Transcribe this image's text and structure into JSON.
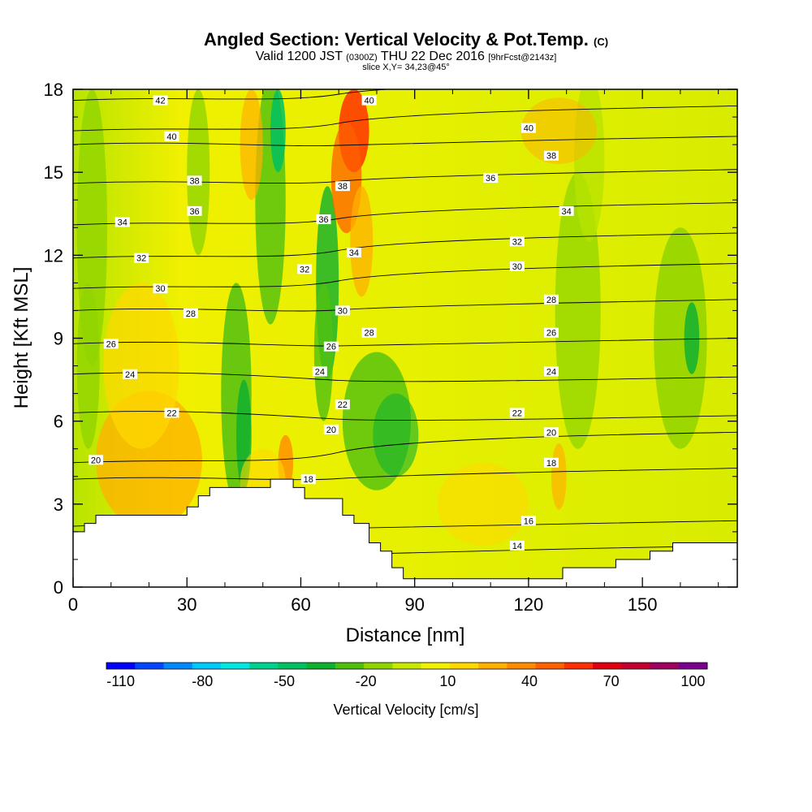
{
  "header": {
    "title": "Angled Section: Vertical Velocity & Pot.Temp.",
    "title_tag": "(C)",
    "subtitle_a": "Valid 1200 JST",
    "subtitle_b": "(0300Z)",
    "subtitle_c": "THU 22 Dec 2016",
    "subtitle_d": "[9hrFcst@2143z]",
    "slice": "slice X,Y= 34,23@45°"
  },
  "chart_data": {
    "type": "heatmap",
    "xlabel": "Distance [nm]",
    "ylabel": "Height [Kft MSL]",
    "xlim": [
      0,
      175
    ],
    "ylim": [
      0,
      18
    ],
    "x_ticks": [
      "0",
      "30",
      "60",
      "90",
      "120",
      "150"
    ],
    "y_ticks": [
      "0",
      "3",
      "6",
      "9",
      "12",
      "15",
      "18"
    ],
    "terrain_profile": [
      [
        0,
        2.0
      ],
      [
        3,
        2.0
      ],
      [
        3,
        2.3
      ],
      [
        6,
        2.3
      ],
      [
        6,
        2.6
      ],
      [
        30,
        2.6
      ],
      [
        30,
        2.9
      ],
      [
        33,
        2.9
      ],
      [
        33,
        3.3
      ],
      [
        36,
        3.3
      ],
      [
        36,
        3.6
      ],
      [
        52,
        3.6
      ],
      [
        52,
        3.9
      ],
      [
        58,
        3.9
      ],
      [
        58,
        3.6
      ],
      [
        61,
        3.6
      ],
      [
        61,
        3.2
      ],
      [
        71,
        3.2
      ],
      [
        71,
        2.6
      ],
      [
        74,
        2.6
      ],
      [
        74,
        2.3
      ],
      [
        78,
        2.3
      ],
      [
        78,
        1.6
      ],
      [
        81,
        1.6
      ],
      [
        81,
        1.3
      ],
      [
        84,
        1.3
      ],
      [
        84,
        0.7
      ],
      [
        87,
        0.7
      ],
      [
        87,
        0.3
      ],
      [
        90,
        0.3
      ],
      [
        90,
        0.3
      ],
      [
        129,
        0.3
      ],
      [
        129,
        0.7
      ],
      [
        143,
        0.7
      ],
      [
        143,
        1.0
      ],
      [
        152,
        1.0
      ],
      [
        152,
        1.3
      ],
      [
        158,
        1.3
      ],
      [
        158,
        1.6
      ],
      [
        175,
        1.6
      ]
    ],
    "theta_contours": [
      {
        "label": "14",
        "y0": 1.2,
        "y1": 1.5
      },
      {
        "label": "16",
        "y0": 2.2,
        "y1": 2.4
      },
      {
        "label": "18",
        "y0": 3.9,
        "y1": 4.3
      },
      {
        "label": "20",
        "y0": 4.5,
        "y1": 5.6
      },
      {
        "label": "22",
        "y0": 6.3,
        "y1": 6.2
      },
      {
        "label": "24",
        "y0": 7.7,
        "y1": 7.6
      },
      {
        "label": "26",
        "y0": 8.8,
        "y1": 9.0
      },
      {
        "label": "28",
        "y0": 10.0,
        "y1": 10.4
      },
      {
        "label": "30",
        "y0": 10.8,
        "y1": 11.7
      },
      {
        "label": "32",
        "y0": 11.9,
        "y1": 12.8
      },
      {
        "label": "34",
        "y0": 13.1,
        "y1": 13.9
      },
      {
        "label": "36",
        "y0": 14.6,
        "y1": 15.1
      },
      {
        "label": "38",
        "y0": 16.0,
        "y1": 16.3
      },
      {
        "label": "40",
        "y0": 16.5,
        "y1": 17.4
      },
      {
        "label": "42",
        "y0": 17.6,
        "y1": 18.4
      }
    ],
    "contour_labels": [
      {
        "text": "42",
        "x": 23,
        "y": 17.6
      },
      {
        "text": "40",
        "x": 26,
        "y": 16.3
      },
      {
        "text": "38",
        "x": 32,
        "y": 14.7
      },
      {
        "text": "36",
        "x": 32,
        "y": 13.6
      },
      {
        "text": "34",
        "x": 13,
        "y": 13.2
      },
      {
        "text": "32",
        "x": 18,
        "y": 11.9
      },
      {
        "text": "30",
        "x": 23,
        "y": 10.8
      },
      {
        "text": "28",
        "x": 31,
        "y": 9.9
      },
      {
        "text": "26",
        "x": 10,
        "y": 8.8
      },
      {
        "text": "24",
        "x": 15,
        "y": 7.7
      },
      {
        "text": "22",
        "x": 26,
        "y": 6.3
      },
      {
        "text": "20",
        "x": 6,
        "y": 4.6
      },
      {
        "text": "40",
        "x": 78,
        "y": 17.6
      },
      {
        "text": "38",
        "x": 71,
        "y": 14.5
      },
      {
        "text": "36",
        "x": 66,
        "y": 13.3
      },
      {
        "text": "34",
        "x": 74,
        "y": 12.1
      },
      {
        "text": "32",
        "x": 61,
        "y": 11.5
      },
      {
        "text": "30",
        "x": 71,
        "y": 10.0
      },
      {
        "text": "28",
        "x": 78,
        "y": 9.2
      },
      {
        "text": "26",
        "x": 68,
        "y": 8.7
      },
      {
        "text": "24",
        "x": 65,
        "y": 7.8
      },
      {
        "text": "22",
        "x": 71,
        "y": 6.6
      },
      {
        "text": "20",
        "x": 68,
        "y": 5.7
      },
      {
        "text": "18",
        "x": 62,
        "y": 3.9
      },
      {
        "text": "40",
        "x": 120,
        "y": 16.6
      },
      {
        "text": "38",
        "x": 126,
        "y": 15.6
      },
      {
        "text": "36",
        "x": 110,
        "y": 14.8
      },
      {
        "text": "34",
        "x": 130,
        "y": 13.6
      },
      {
        "text": "32",
        "x": 117,
        "y": 12.5
      },
      {
        "text": "30",
        "x": 117,
        "y": 11.6
      },
      {
        "text": "28",
        "x": 126,
        "y": 10.4
      },
      {
        "text": "26",
        "x": 126,
        "y": 9.2
      },
      {
        "text": "24",
        "x": 126,
        "y": 7.8
      },
      {
        "text": "22",
        "x": 117,
        "y": 6.3
      },
      {
        "text": "20",
        "x": 126,
        "y": 5.6
      },
      {
        "text": "18",
        "x": 126,
        "y": 4.5
      },
      {
        "text": "16",
        "x": 120,
        "y": 2.4
      },
      {
        "text": "14",
        "x": 117,
        "y": 1.5
      }
    ],
    "colorbar": {
      "title": "Vertical Velocity [cm/s]",
      "tick_labels": [
        "-110",
        "-80",
        "-50",
        "-20",
        "10",
        "40",
        "70",
        "100"
      ],
      "colors": [
        "#0000ff",
        "#0048ff",
        "#0088ff",
        "#00c8ff",
        "#00e8e0",
        "#00d090",
        "#00c060",
        "#10b030",
        "#50c010",
        "#90d400",
        "#c8e800",
        "#f0f000",
        "#ffd800",
        "#ffb000",
        "#ff8c00",
        "#ff6000",
        "#ff3000",
        "#e00010",
        "#c00030",
        "#a00060",
        "#7a0090"
      ]
    }
  }
}
